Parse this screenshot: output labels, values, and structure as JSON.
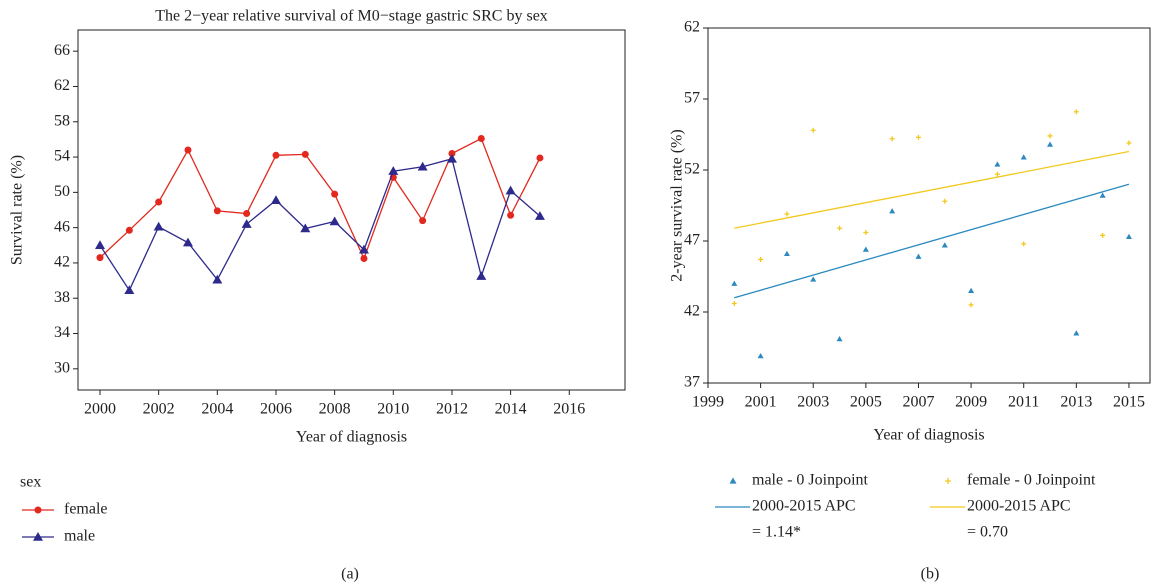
{
  "chart_data": [
    {
      "type": "line",
      "panel_label": "(a)",
      "title": "The 2−year relative survival of M0−stage gastric SRC by sex",
      "x_label": "Year of diagnosis",
      "y_label": "Survival rate (%)",
      "x": [
        2000,
        2001,
        2002,
        2003,
        2004,
        2005,
        2006,
        2007,
        2008,
        2009,
        2010,
        2011,
        2012,
        2013,
        2014,
        2015
      ],
      "legend_title": "sex",
      "series": [
        {
          "name": "female",
          "color": "#e3281e",
          "marker": "circle",
          "values": [
            42.6,
            45.7,
            48.9,
            54.8,
            47.9,
            47.6,
            54.2,
            54.3,
            49.8,
            42.5,
            51.7,
            46.8,
            54.4,
            56.1,
            47.4,
            53.9
          ]
        },
        {
          "name": "male",
          "color": "#2e2a8c",
          "marker": "triangle",
          "values": [
            44.0,
            38.9,
            46.1,
            44.3,
            40.1,
            46.4,
            49.1,
            45.9,
            46.7,
            43.5,
            52.4,
            52.9,
            53.8,
            40.5,
            50.2,
            47.3
          ]
        }
      ],
      "xlim": [
        1999.25,
        2017.9
      ],
      "xticks": [
        2000,
        2002,
        2004,
        2006,
        2008,
        2010,
        2012,
        2014,
        2016
      ],
      "ylim": [
        27.6,
        68.4
      ],
      "yticks": [
        30,
        34,
        38,
        42,
        46,
        50,
        54,
        58,
        62,
        66
      ]
    },
    {
      "type": "scatter",
      "panel_label": "(b)",
      "x_label": "Year of diagnosis",
      "y_label": "2-year survival rate (%)",
      "x": [
        2000,
        2001,
        2002,
        2003,
        2004,
        2005,
        2006,
        2007,
        2008,
        2009,
        2010,
        2011,
        2012,
        2013,
        2014,
        2015
      ],
      "series": [
        {
          "name": "male - 0 Joinpoint",
          "color": "#2a8ac0",
          "marker": "triangle",
          "values": [
            44.0,
            38.9,
            46.1,
            44.3,
            40.1,
            46.4,
            49.1,
            45.9,
            46.7,
            43.5,
            52.4,
            52.9,
            53.8,
            40.5,
            50.2,
            47.3
          ],
          "fit": {
            "label": [
              "2000-2015 APC",
              "= 1.14*"
            ],
            "x": [
              2000,
              2015
            ],
            "values": [
              43.0,
              51.0
            ]
          }
        },
        {
          "name": "female - 0 Joinpoint",
          "color": "#f2c81e",
          "marker": "star",
          "values": [
            42.6,
            45.7,
            48.9,
            54.8,
            47.9,
            47.6,
            54.2,
            54.3,
            49.8,
            42.5,
            51.7,
            46.8,
            54.4,
            56.1,
            47.4,
            53.9
          ],
          "fit": {
            "label": [
              "2000-2015 APC",
              "= 0.70"
            ],
            "x": [
              2000,
              2015
            ],
            "values": [
              47.9,
              53.3
            ]
          }
        }
      ],
      "xlim": [
        1999,
        2015.8
      ],
      "xticks": [
        1999,
        2001,
        2003,
        2005,
        2007,
        2009,
        2011,
        2013,
        2015
      ],
      "ylim": [
        37,
        62
      ],
      "yticks": [
        37,
        42,
        47,
        52,
        57,
        62
      ]
    }
  ]
}
